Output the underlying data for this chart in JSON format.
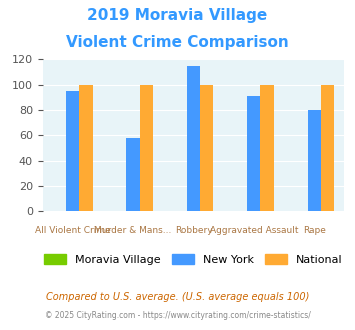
{
  "title_line1": "2019 Moravia Village",
  "title_line2": "Violent Crime Comparison",
  "title_color": "#3399ff",
  "cat_line1": [
    "",
    "Murder & Mans...",
    "",
    "Aggravated Assault",
    ""
  ],
  "cat_line2": [
    "All Violent Crime",
    "",
    "Robbery",
    "",
    "Rape"
  ],
  "moravia_values": [
    0,
    0,
    0,
    0,
    0
  ],
  "newyork_values": [
    95,
    58,
    115,
    91,
    80
  ],
  "national_values": [
    100,
    100,
    100,
    100,
    100
  ],
  "moravia_color": "#77cc00",
  "newyork_color": "#4499ff",
  "national_color": "#ffaa33",
  "ylim": [
    0,
    120
  ],
  "yticks": [
    0,
    20,
    40,
    60,
    80,
    100,
    120
  ],
  "plot_bg_color": "#e8f4f8",
  "legend_labels": [
    "Moravia Village",
    "New York",
    "National"
  ],
  "footnote1": "Compared to U.S. average. (U.S. average equals 100)",
  "footnote2": "© 2025 CityRating.com - https://www.cityrating.com/crime-statistics/",
  "footnote1_color": "#cc6600",
  "footnote2_color": "#888888"
}
